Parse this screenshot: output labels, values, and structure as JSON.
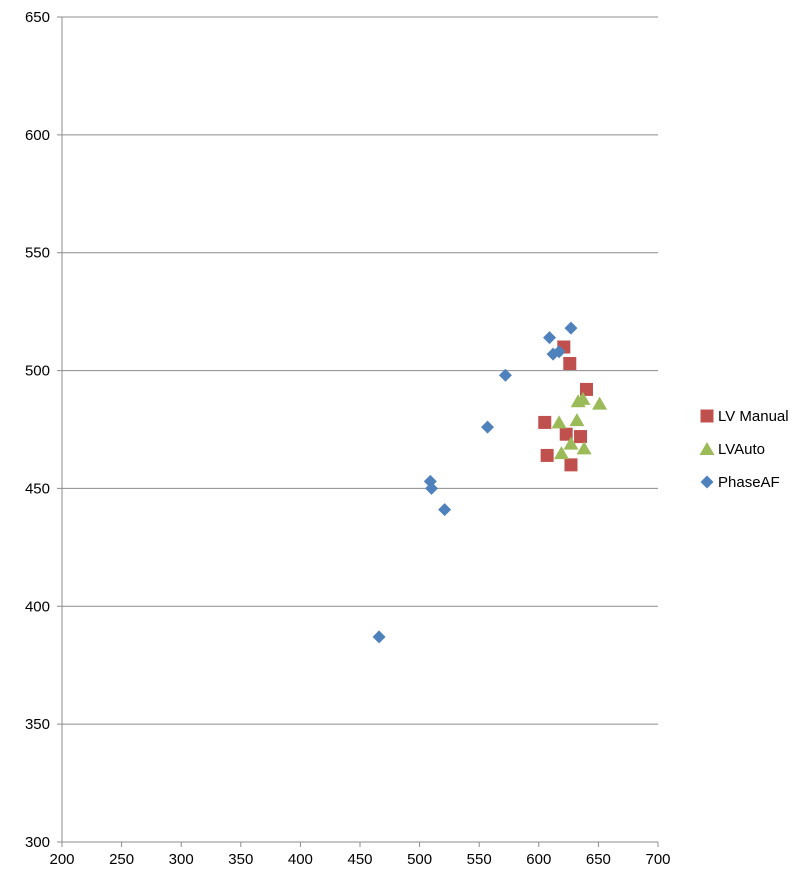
{
  "chart_data": {
    "type": "scatter",
    "title": "",
    "xlabel": "",
    "ylabel": "",
    "xlim": [
      200,
      700
    ],
    "ylim": [
      300,
      650
    ],
    "x_ticks": [
      "200",
      "250",
      "300",
      "350",
      "400",
      "450",
      "500",
      "550",
      "600",
      "650",
      "700"
    ],
    "y_ticks": [
      "300",
      "350",
      "400",
      "450",
      "500",
      "550",
      "600",
      "650"
    ],
    "grid": "horizontal",
    "legend_position": "right",
    "series": [
      {
        "name": "LV Manual",
        "marker": "square",
        "color": "#c0504d",
        "points": [
          {
            "x": 621,
            "y": 510
          },
          {
            "x": 626,
            "y": 503
          },
          {
            "x": 640,
            "y": 492
          },
          {
            "x": 605,
            "y": 478
          },
          {
            "x": 623,
            "y": 473
          },
          {
            "x": 635,
            "y": 472
          },
          {
            "x": 607,
            "y": 464
          },
          {
            "x": 627,
            "y": 460
          }
        ]
      },
      {
        "name": "LVAuto",
        "marker": "triangle",
        "color": "#9bbb59",
        "points": [
          {
            "x": 633,
            "y": 487
          },
          {
            "x": 637,
            "y": 488
          },
          {
            "x": 651,
            "y": 486
          },
          {
            "x": 617,
            "y": 478
          },
          {
            "x": 632,
            "y": 479
          },
          {
            "x": 627,
            "y": 469
          },
          {
            "x": 638,
            "y": 467
          },
          {
            "x": 619,
            "y": 465
          }
        ]
      },
      {
        "name": "PhaseAF",
        "marker": "diamond",
        "color": "#4f81bd",
        "points": [
          {
            "x": 627,
            "y": 518
          },
          {
            "x": 609,
            "y": 514
          },
          {
            "x": 612,
            "y": 507
          },
          {
            "x": 617,
            "y": 508
          },
          {
            "x": 572,
            "y": 498
          },
          {
            "x": 557,
            "y": 476
          },
          {
            "x": 509,
            "y": 453
          },
          {
            "x": 510,
            "y": 450
          },
          {
            "x": 521,
            "y": 441
          },
          {
            "x": 466,
            "y": 387
          }
        ]
      }
    ]
  }
}
